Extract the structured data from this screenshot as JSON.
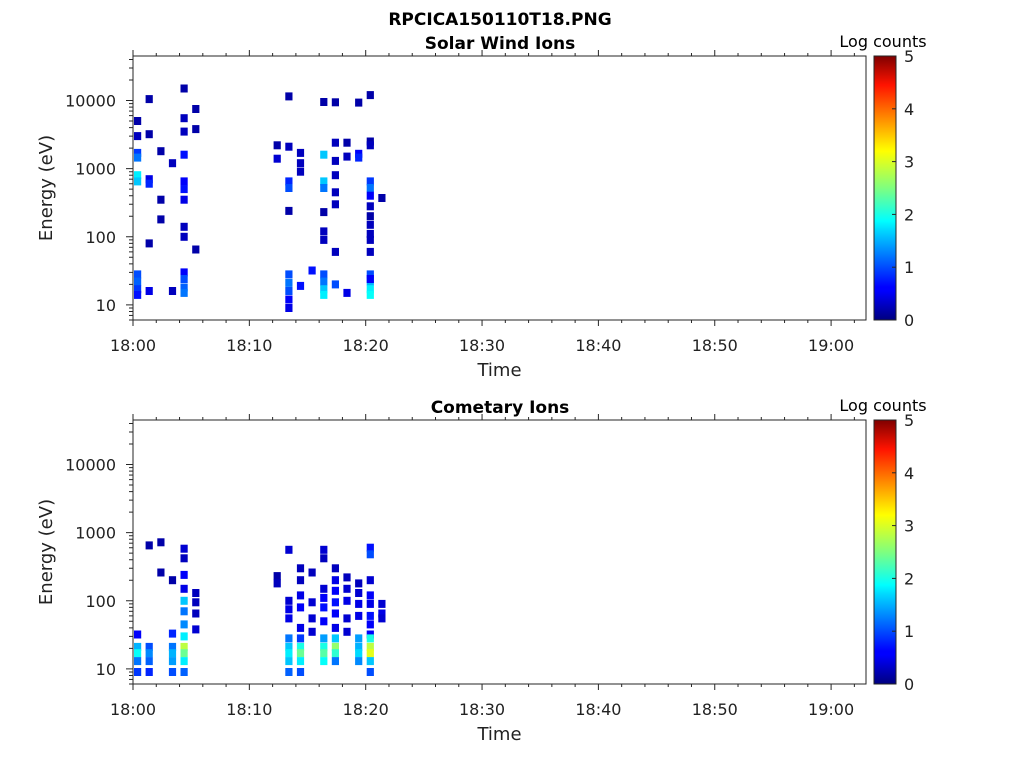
{
  "figure": {
    "title": "RPCICA150110T18.PNG"
  },
  "chart_data": [
    {
      "type": "heatmap",
      "title": "Solar Wind Ions",
      "xlabel": "Time",
      "ylabel": "Energy (eV)",
      "x_range": [
        "18:00",
        "19:03"
      ],
      "xticks": [
        "18:00",
        "18:10",
        "18:20",
        "18:30",
        "18:40",
        "18:50",
        "19:00"
      ],
      "y_scale": "log",
      "ylim": [
        6,
        45000
      ],
      "yticks": [
        "10",
        "100",
        "1000",
        "10000"
      ],
      "colorbar": {
        "label": "Log counts",
        "range": [
          0,
          5
        ],
        "ticks": [
          "0",
          "1",
          "2",
          "3",
          "4",
          "5"
        ],
        "colormap": "jet"
      },
      "cells": [
        [
          "18:00",
          28,
          1.0
        ],
        [
          "18:00",
          22,
          1.1
        ],
        [
          "18:00",
          17,
          0.9
        ],
        [
          "18:00",
          14,
          0.7
        ],
        [
          "18:00",
          1700,
          0.9
        ],
        [
          "18:00",
          1450,
          1.2
        ],
        [
          "18:00",
          800,
          1.8
        ],
        [
          "18:00",
          650,
          1.6
        ],
        [
          "18:00",
          3000,
          0.3
        ],
        [
          "18:00",
          5000,
          0.2
        ],
        [
          "18:01",
          10500,
          0.2
        ],
        [
          "18:01",
          3200,
          0.2
        ],
        [
          "18:01",
          700,
          0.5
        ],
        [
          "18:01",
          600,
          0.8
        ],
        [
          "18:01",
          16,
          0.5
        ],
        [
          "18:01",
          80,
          0.2
        ],
        [
          "18:02",
          1800,
          0.2
        ],
        [
          "18:02",
          350,
          0.2
        ],
        [
          "18:02",
          180,
          0.2
        ],
        [
          "18:03",
          1200,
          0.3
        ],
        [
          "18:03",
          16,
          0.3
        ],
        [
          "18:04",
          30,
          0.6
        ],
        [
          "18:04",
          24,
          1.0
        ],
        [
          "18:04",
          18,
          1.1
        ],
        [
          "18:04",
          15,
          1.2
        ],
        [
          "18:04",
          1600,
          0.7
        ],
        [
          "18:04",
          650,
          0.6
        ],
        [
          "18:04",
          500,
          0.7
        ],
        [
          "18:04",
          350,
          0.5
        ],
        [
          "18:04",
          140,
          0.3
        ],
        [
          "18:04",
          100,
          0.3
        ],
        [
          "18:04",
          15000,
          0.2
        ],
        [
          "18:04",
          5500,
          0.3
        ],
        [
          "18:04",
          3500,
          0.3
        ],
        [
          "18:05",
          7500,
          0.2
        ],
        [
          "18:05",
          3800,
          0.2
        ],
        [
          "18:05",
          65,
          0.2
        ],
        [
          "18:12",
          2200,
          0.2
        ],
        [
          "18:12",
          1400,
          0.4
        ],
        [
          "18:13",
          28,
          1.0
        ],
        [
          "18:13",
          21,
          1.2
        ],
        [
          "18:13",
          16,
          1.0
        ],
        [
          "18:13",
          12,
          0.6
        ],
        [
          "18:13",
          9,
          0.5
        ],
        [
          "18:13",
          650,
          0.8
        ],
        [
          "18:13",
          520,
          1.0
        ],
        [
          "18:13",
          11500,
          0.2
        ],
        [
          "18:13",
          2100,
          0.3
        ],
        [
          "18:13",
          240,
          0.2
        ],
        [
          "18:14",
          1700,
          0.3
        ],
        [
          "18:14",
          1200,
          0.3
        ],
        [
          "18:14",
          900,
          0.3
        ],
        [
          "18:14",
          19,
          0.7
        ],
        [
          "18:15",
          32,
          0.7
        ],
        [
          "18:16",
          28,
          1.0
        ],
        [
          "18:16",
          22,
          1.2
        ],
        [
          "18:16",
          17,
          1.6
        ],
        [
          "18:16",
          14,
          1.8
        ],
        [
          "18:16",
          1600,
          1.6
        ],
        [
          "18:16",
          650,
          1.6
        ],
        [
          "18:16",
          520,
          1.2
        ],
        [
          "18:16",
          9500,
          0.2
        ],
        [
          "18:16",
          230,
          0.2
        ],
        [
          "18:16",
          120,
          0.3
        ],
        [
          "18:16",
          90,
          0.3
        ],
        [
          "18:17",
          9400,
          0.2
        ],
        [
          "18:17",
          2400,
          0.3
        ],
        [
          "18:17",
          1300,
          0.3
        ],
        [
          "18:17",
          800,
          0.3
        ],
        [
          "18:17",
          450,
          0.3
        ],
        [
          "18:17",
          300,
          0.3
        ],
        [
          "18:17",
          60,
          0.3
        ],
        [
          "18:17",
          20,
          1.0
        ],
        [
          "18:18",
          15,
          0.5
        ],
        [
          "18:18",
          2400,
          0.2
        ],
        [
          "18:18",
          1500,
          0.3
        ],
        [
          "18:19",
          9300,
          0.2
        ],
        [
          "18:19",
          1650,
          0.6
        ],
        [
          "18:19",
          1450,
          0.8
        ],
        [
          "18:20",
          12000,
          0.2
        ],
        [
          "18:20",
          650,
          0.9
        ],
        [
          "18:20",
          520,
          1.2
        ],
        [
          "18:20",
          400,
          0.6
        ],
        [
          "18:20",
          280,
          0.3
        ],
        [
          "18:20",
          200,
          0.2
        ],
        [
          "18:20",
          110,
          0.3
        ],
        [
          "18:20",
          90,
          0.3
        ],
        [
          "18:20",
          60,
          0.3
        ],
        [
          "18:20",
          28,
          1.0
        ],
        [
          "18:20",
          22,
          1.5
        ],
        [
          "18:20",
          17,
          1.8
        ],
        [
          "18:20",
          14,
          1.9
        ],
        [
          "18:20",
          2500,
          0.2
        ],
        [
          "18:20",
          2200,
          0.3
        ],
        [
          "18:20",
          150,
          0.3
        ],
        [
          "18:20",
          24,
          0.6
        ],
        [
          "18:21",
          370,
          0.2
        ]
      ]
    },
    {
      "type": "heatmap",
      "title": "Cometary Ions",
      "xlabel": "Time",
      "ylabel": "Energy (eV)",
      "x_range": [
        "18:00",
        "19:03"
      ],
      "xticks": [
        "18:00",
        "18:10",
        "18:20",
        "18:30",
        "18:40",
        "18:50",
        "19:00"
      ],
      "y_scale": "log",
      "ylim": [
        6,
        45000
      ],
      "yticks": [
        "10",
        "100",
        "1000",
        "10000"
      ],
      "colorbar": {
        "label": "Log counts",
        "range": [
          0,
          5
        ],
        "ticks": [
          "0",
          "1",
          "2",
          "3",
          "4",
          "5"
        ],
        "colormap": "jet"
      },
      "cells": [
        [
          "18:00",
          32,
          0.6
        ],
        [
          "18:00",
          21,
          1.5
        ],
        [
          "18:00",
          17,
          1.9
        ],
        [
          "18:00",
          13,
          1.2
        ],
        [
          "18:00",
          9,
          0.9
        ],
        [
          "18:01",
          21,
          1.0
        ],
        [
          "18:01",
          17,
          1.3
        ],
        [
          "18:01",
          13,
          1.1
        ],
        [
          "18:01",
          9,
          0.8
        ],
        [
          "18:01",
          650,
          0.2
        ],
        [
          "18:02",
          260,
          0.2
        ],
        [
          "18:02",
          720,
          0.2
        ],
        [
          "18:03",
          200,
          0.2
        ],
        [
          "18:03",
          33,
          0.8
        ],
        [
          "18:03",
          21,
          1.2
        ],
        [
          "18:03",
          17,
          1.5
        ],
        [
          "18:03",
          13,
          1.4
        ],
        [
          "18:03",
          9,
          1.0
        ],
        [
          "18:04",
          580,
          0.4
        ],
        [
          "18:04",
          420,
          0.3
        ],
        [
          "18:04",
          240,
          0.6
        ],
        [
          "18:04",
          150,
          0.5
        ],
        [
          "18:04",
          100,
          1.6
        ],
        [
          "18:04",
          70,
          1.2
        ],
        [
          "18:04",
          45,
          1.3
        ],
        [
          "18:04",
          30,
          1.8
        ],
        [
          "18:04",
          21,
          2.8
        ],
        [
          "18:04",
          17,
          2.4
        ],
        [
          "18:04",
          13,
          1.8
        ],
        [
          "18:04",
          9,
          1.1
        ],
        [
          "18:05",
          130,
          0.3
        ],
        [
          "18:05",
          95,
          0.3
        ],
        [
          "18:05",
          65,
          0.3
        ],
        [
          "18:05",
          38,
          0.4
        ],
        [
          "18:12",
          230,
          0.2
        ],
        [
          "18:12",
          180,
          0.3
        ],
        [
          "18:13",
          100,
          0.4
        ],
        [
          "18:13",
          75,
          0.5
        ],
        [
          "18:13",
          55,
          0.5
        ],
        [
          "18:13",
          28,
          1.2
        ],
        [
          "18:13",
          21,
          1.6
        ],
        [
          "18:13",
          17,
          1.8
        ],
        [
          "18:13",
          13,
          1.6
        ],
        [
          "18:13",
          9,
          1.1
        ],
        [
          "18:13",
          560,
          0.4
        ],
        [
          "18:14",
          300,
          0.3
        ],
        [
          "18:14",
          200,
          0.3
        ],
        [
          "18:14",
          120,
          0.5
        ],
        [
          "18:14",
          80,
          0.6
        ],
        [
          "18:14",
          40,
          0.5
        ],
        [
          "18:14",
          28,
          0.9
        ],
        [
          "18:14",
          21,
          2.0
        ],
        [
          "18:14",
          17,
          2.4
        ],
        [
          "18:14",
          13,
          1.8
        ],
        [
          "18:14",
          9,
          1.0
        ],
        [
          "18:15",
          95,
          0.4
        ],
        [
          "18:15",
          55,
          0.4
        ],
        [
          "18:15",
          35,
          0.4
        ],
        [
          "18:15",
          260,
          0.3
        ],
        [
          "18:16",
          150,
          0.4
        ],
        [
          "18:16",
          110,
          0.6
        ],
        [
          "18:16",
          80,
          0.7
        ],
        [
          "18:16",
          50,
          0.6
        ],
        [
          "18:16",
          28,
          1.4
        ],
        [
          "18:16",
          21,
          2.0
        ],
        [
          "18:16",
          17,
          2.3
        ],
        [
          "18:16",
          13,
          1.9
        ],
        [
          "18:16",
          560,
          0.4
        ],
        [
          "18:16",
          420,
          0.3
        ],
        [
          "18:17",
          300,
          0.3
        ],
        [
          "18:17",
          200,
          0.5
        ],
        [
          "18:17",
          140,
          0.6
        ],
        [
          "18:17",
          95,
          0.7
        ],
        [
          "18:17",
          65,
          0.6
        ],
        [
          "18:17",
          40,
          0.5
        ],
        [
          "18:17",
          28,
          1.6
        ],
        [
          "18:17",
          21,
          2.6
        ],
        [
          "18:17",
          17,
          2.1
        ],
        [
          "18:17",
          13,
          1.2
        ],
        [
          "18:18",
          150,
          0.4
        ],
        [
          "18:18",
          100,
          0.5
        ],
        [
          "18:18",
          55,
          0.4
        ],
        [
          "18:18",
          220,
          0.3
        ],
        [
          "18:18",
          35,
          0.4
        ],
        [
          "18:19",
          130,
          0.4
        ],
        [
          "18:19",
          90,
          0.5
        ],
        [
          "18:19",
          60,
          0.5
        ],
        [
          "18:19",
          28,
          1.4
        ],
        [
          "18:19",
          21,
          1.5
        ],
        [
          "18:19",
          17,
          1.7
        ],
        [
          "18:19",
          13,
          1.3
        ],
        [
          "18:19",
          180,
          0.3
        ],
        [
          "18:20",
          600,
          0.7
        ],
        [
          "18:20",
          480,
          1.0
        ],
        [
          "18:20",
          200,
          0.4
        ],
        [
          "18:20",
          120,
          0.6
        ],
        [
          "18:20",
          90,
          0.5
        ],
        [
          "18:20",
          60,
          0.7
        ],
        [
          "18:20",
          45,
          0.6
        ],
        [
          "18:20",
          32,
          0.6
        ],
        [
          "18:20",
          28,
          2.0
        ],
        [
          "18:20",
          21,
          2.8
        ],
        [
          "18:20",
          17,
          3.0
        ],
        [
          "18:20",
          13,
          1.6
        ],
        [
          "18:20",
          9,
          1.0
        ],
        [
          "18:21",
          90,
          0.4
        ],
        [
          "18:21",
          65,
          0.5
        ],
        [
          "18:21",
          55,
          0.4
        ]
      ]
    }
  ]
}
